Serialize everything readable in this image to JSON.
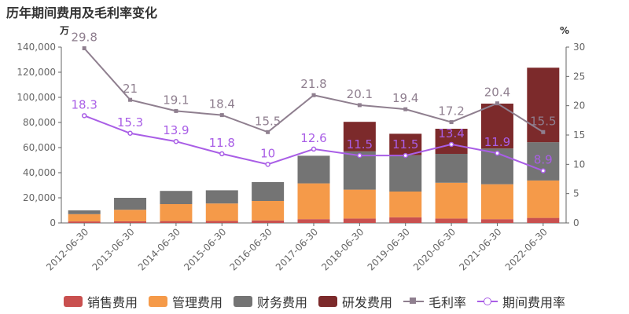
{
  "chart_data": {
    "type": "bar",
    "title": "历年期间费用及毛利率变化",
    "categories": [
      "2012-06-30",
      "2013-06-30",
      "2014-06-30",
      "2015-06-30",
      "2016-06-30",
      "2017-06-30",
      "2018-06-30",
      "2019-06-30",
      "2020-06-30",
      "2021-06-30",
      "2022-06-30"
    ],
    "y_left": {
      "unit": "万",
      "ylim": [
        0,
        140000
      ],
      "ticks": [
        "0",
        "20,000",
        "40,000",
        "60,000",
        "80,000",
        "100,000",
        "120,000",
        "140,000"
      ]
    },
    "y_right": {
      "unit": "%",
      "ylim": [
        0,
        30
      ],
      "ticks": [
        "0",
        "5",
        "10",
        "15",
        "20",
        "25",
        "30"
      ]
    },
    "stacked_series": [
      {
        "name": "销售费用",
        "color": "#c9504f",
        "values": [
          1200,
          1300,
          1500,
          1600,
          2000,
          3000,
          3500,
          4500,
          3500,
          3000,
          4000
        ]
      },
      {
        "name": "管理费用",
        "color": "#f59a49",
        "values": [
          5800,
          9200,
          13500,
          13900,
          15500,
          28500,
          23000,
          20500,
          28500,
          27800,
          29800
        ]
      },
      {
        "name": "财务费用",
        "color": "#747474",
        "values": [
          3000,
          9500,
          10500,
          10500,
          15000,
          22000,
          30500,
          29000,
          23000,
          28500,
          30500
        ]
      },
      {
        "name": "研发费用",
        "color": "#7c2a2b",
        "values": [
          0,
          0,
          0,
          0,
          0,
          0,
          23500,
          17000,
          20000,
          35700,
          59300
        ]
      }
    ],
    "line_series": [
      {
        "name": "毛利率",
        "color": "#8f7f8f",
        "marker": "square",
        "values": [
          29.8,
          21,
          19.1,
          18.4,
          15.5,
          21.8,
          20.1,
          19.4,
          17.2,
          20.4,
          15.5
        ],
        "labels": [
          "29.8",
          "21",
          "19.1",
          "18.4",
          "15.5",
          "21.8",
          "20.1",
          "19.4",
          "17.2",
          "20.4",
          "15.5"
        ]
      },
      {
        "name": "期间费用率",
        "color": "#a95ee6",
        "marker": "circle",
        "values": [
          18.3,
          15.3,
          13.9,
          11.8,
          10,
          12.6,
          11.5,
          11.5,
          13.4,
          11.9,
          8.9
        ],
        "labels": [
          "18.3",
          "15.3",
          "13.9",
          "11.8",
          "10",
          "12.6",
          "11.5",
          "11.5",
          "13.4",
          "11.9",
          "8.9"
        ]
      }
    ]
  }
}
